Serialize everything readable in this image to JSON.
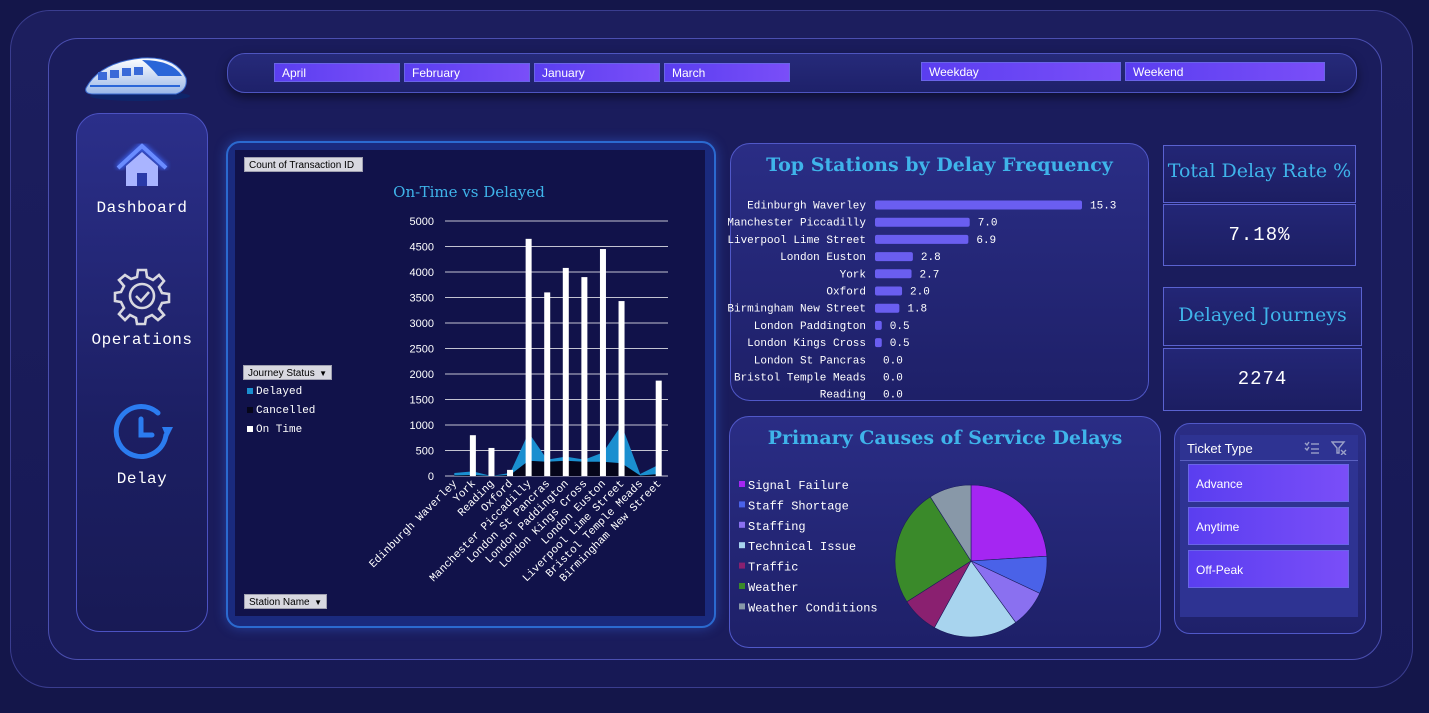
{
  "months": [
    "April",
    "February",
    "January",
    "March"
  ],
  "daytypes": [
    "Weekday",
    "Weekend"
  ],
  "nav": {
    "dashboard": "Dashboard",
    "operations": "Operations",
    "delay": "Delay"
  },
  "pivot": {
    "values_field": "Count of Transaction ID",
    "legend_field": "Journey Status",
    "axis_field": "Station Name"
  },
  "kpi": {
    "delay_rate_title": "Total Delay Rate %",
    "delay_rate_value": "7.18%",
    "delayed_title": "Delayed Journeys",
    "delayed_value": "2274"
  },
  "ticket": {
    "title": "Ticket Type",
    "options": [
      "Advance",
      "Anytime",
      "Off-Peak"
    ]
  },
  "colors": {
    "delayed": "#1a8fd0",
    "cancelled": "#05051a",
    "on_time": "#ffffff",
    "bar_stations": "#6a5ef0"
  },
  "chart_data": [
    {
      "type": "bar",
      "title": "On-Time vs Delayed",
      "categories": [
        "Edinburgh Waverley",
        "York",
        "Reading",
        "Oxford",
        "Manchester Piccadilly",
        "London St Pancras",
        "London Paddington",
        "London Kings Cross",
        "London Euston",
        "Liverpool Lime Street",
        "Bristol Temple Meads",
        "Birmingham New Street"
      ],
      "series": [
        {
          "name": "Delayed",
          "values": [
            60,
            90,
            0,
            60,
            850,
            320,
            380,
            320,
            460,
            1000,
            40,
            220
          ]
        },
        {
          "name": "Cancelled",
          "values": [
            10,
            20,
            0,
            20,
            300,
            280,
            300,
            280,
            280,
            250,
            10,
            40
          ]
        },
        {
          "name": "On Time",
          "values": [
            0,
            800,
            550,
            120,
            4650,
            3600,
            4080,
            3900,
            4450,
            3430,
            0,
            1870
          ]
        }
      ],
      "yticks": [
        "0",
        "500",
        "1000",
        "1500",
        "2000",
        "2500",
        "3000",
        "3500",
        "4000",
        "4500",
        "5000"
      ],
      "ylim": [
        0,
        5000
      ]
    },
    {
      "type": "bar",
      "orientation": "horizontal",
      "title": "Top Stations by Delay Frequency",
      "categories": [
        "Edinburgh Waverley",
        "Manchester Piccadilly",
        "Liverpool Lime Street",
        "London Euston",
        "York",
        "Oxford",
        "Birmingham New Street",
        "London Paddington",
        "London Kings Cross",
        "London St Pancras",
        "Bristol Temple Meads",
        "Reading"
      ],
      "values": [
        15.3,
        7.0,
        6.9,
        2.8,
        2.7,
        2.0,
        1.8,
        0.5,
        0.5,
        0.0,
        0.0,
        0.0
      ],
      "labels": [
        "15.3",
        "7.0",
        "6.9",
        "2.8",
        "2.7",
        "2.0",
        "1.8",
        "0.5",
        "0.5",
        "0.0",
        "0.0",
        "0.0"
      ]
    },
    {
      "type": "pie",
      "title": "Primary Causes of Service Delays",
      "categories": [
        "Signal Failure",
        "Staff Shortage",
        "Staffing",
        "Technical Issue",
        "Traffic",
        "Weather",
        "Weather Conditions"
      ],
      "values": [
        24,
        8,
        8,
        18,
        8,
        25,
        9
      ],
      "colors": [
        "#a526f2",
        "#4a62e8",
        "#8a70f0",
        "#a8d4ee",
        "#8a2070",
        "#3a8a2a",
        "#8898a8"
      ]
    }
  ]
}
